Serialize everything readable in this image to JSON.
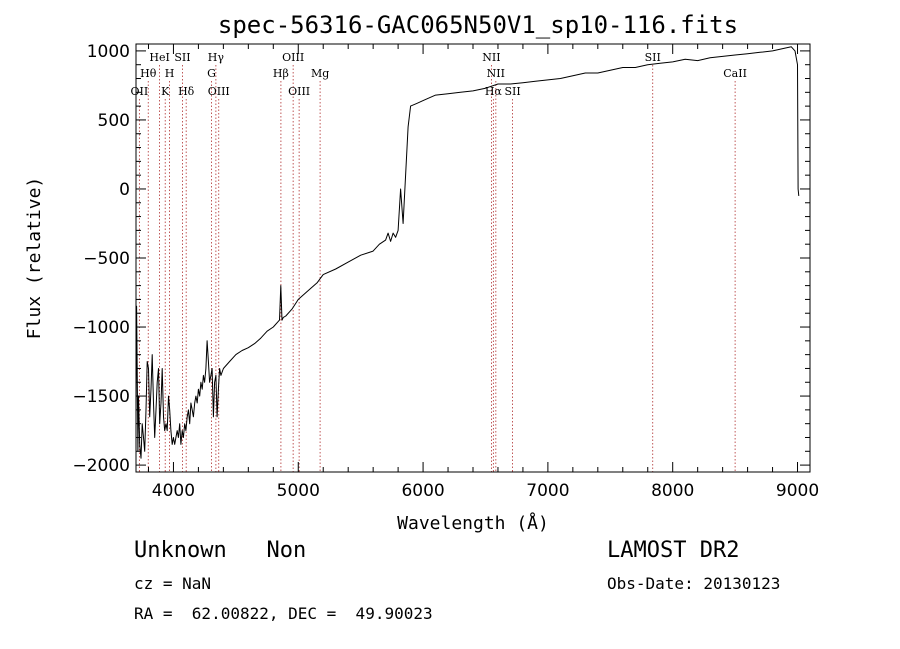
{
  "chart_data": {
    "type": "line",
    "title": "spec-56316-GAC065N50V1_sp10-116.fits",
    "xlabel": "Wavelength (Å)",
    "ylabel": "Flux (relative)",
    "xlim": [
      3700,
      9100
    ],
    "ylim": [
      -2050,
      1050
    ],
    "x_ticks": [
      "4000",
      "5000",
      "6000",
      "7000",
      "8000",
      "9000"
    ],
    "x_tick_values": [
      4000,
      5000,
      6000,
      7000,
      8000,
      9000
    ],
    "y_ticks": [
      "1000",
      "500",
      "0",
      "−500",
      "−1000",
      "−1500",
      "−2000"
    ],
    "y_tick_values": [
      1000,
      500,
      0,
      -500,
      -1000,
      -1500,
      -2000
    ],
    "series": [
      {
        "x": [
          3700,
          3705,
          3710,
          3715,
          3720,
          3730,
          3740,
          3750,
          3760,
          3770,
          3780,
          3790,
          3800,
          3810,
          3820,
          3830,
          3840,
          3850,
          3860,
          3870,
          3880,
          3890,
          3900,
          3910,
          3920,
          3930,
          3940,
          3950,
          3960,
          3970,
          3980,
          3990,
          4000,
          4010,
          4020,
          4030,
          4040,
          4050,
          4060,
          4070,
          4080,
          4090,
          4100,
          4110,
          4120,
          4130,
          4140,
          4150,
          4160,
          4170,
          4180,
          4190,
          4200,
          4210,
          4220,
          4230,
          4240,
          4250,
          4260,
          4270,
          4280,
          4290,
          4300,
          4310,
          4320,
          4330,
          4340,
          4350,
          4360,
          4370,
          4380,
          4400,
          4450,
          4500,
          4550,
          4600,
          4650,
          4700,
          4750,
          4800,
          4850,
          4860,
          4870,
          4880,
          4900,
          4950,
          5000,
          5050,
          5100,
          5150,
          5200,
          5300,
          5400,
          5500,
          5600,
          5650,
          5700,
          5720,
          5740,
          5760,
          5780,
          5800,
          5820,
          5840,
          5860,
          5880,
          5900,
          5950,
          6000,
          6050,
          6100,
          6200,
          6300,
          6400,
          6500,
          6600,
          6700,
          6800,
          6900,
          7000,
          7100,
          7200,
          7300,
          7400,
          7500,
          7600,
          7700,
          7800,
          7900,
          8000,
          8100,
          8200,
          8300,
          8400,
          8500,
          8600,
          8700,
          8800,
          8850,
          8900,
          8950,
          8980,
          9000,
          9005,
          9010
        ],
        "y": [
          -1700,
          -850,
          -1300,
          -1900,
          -1500,
          -1850,
          -1950,
          -1700,
          -1800,
          -1900,
          -1600,
          -1250,
          -1300,
          -1650,
          -1450,
          -1200,
          -1550,
          -1800,
          -1600,
          -1400,
          -1300,
          -1700,
          -1550,
          -1300,
          -1650,
          -1750,
          -1700,
          -1750,
          -1500,
          -1600,
          -1750,
          -1850,
          -1800,
          -1850,
          -1800,
          -1750,
          -1800,
          -1700,
          -1850,
          -1750,
          -1800,
          -1700,
          -1750,
          -1650,
          -1600,
          -1700,
          -1550,
          -1600,
          -1650,
          -1550,
          -1500,
          -1550,
          -1450,
          -1500,
          -1400,
          -1450,
          -1350,
          -1400,
          -1300,
          -1100,
          -1250,
          -1400,
          -1350,
          -1300,
          -1650,
          -1400,
          -1350,
          -1650,
          -1450,
          -1300,
          -1350,
          -1300,
          -1250,
          -1200,
          -1170,
          -1150,
          -1120,
          -1080,
          -1030,
          -1000,
          -950,
          -700,
          -950,
          -930,
          -920,
          -870,
          -800,
          -760,
          -720,
          -680,
          -620,
          -580,
          -530,
          -480,
          -450,
          -400,
          -370,
          -320,
          -380,
          -320,
          -350,
          -300,
          0,
          -250,
          100,
          450,
          600,
          620,
          640,
          660,
          680,
          690,
          700,
          710,
          730,
          760,
          760,
          770,
          780,
          790,
          800,
          820,
          840,
          840,
          860,
          880,
          880,
          900,
          910,
          920,
          940,
          930,
          950,
          960,
          970,
          980,
          990,
          1000,
          1010,
          1020,
          1030,
          1000,
          900,
          0,
          -50
        ]
      }
    ],
    "lines": [
      {
        "wave": 3727,
        "label": "OII",
        "row": 3
      },
      {
        "wave": 3798,
        "label": "Hθ",
        "row": 2
      },
      {
        "wave": 3889,
        "label": "HeI",
        "row": 1
      },
      {
        "wave": 3934,
        "label": "K",
        "row": 3
      },
      {
        "wave": 3969,
        "label": "H",
        "row": 2
      },
      {
        "wave": 4072,
        "label": "SII",
        "row": 1
      },
      {
        "wave": 4102,
        "label": "Hδ",
        "row": 3
      },
      {
        "wave": 4305,
        "label": "G",
        "row": 2
      },
      {
        "wave": 4340,
        "label": "Hγ",
        "row": 1
      },
      {
        "wave": 4363,
        "label": "OIII",
        "row": 3
      },
      {
        "wave": 4861,
        "label": "Hβ",
        "row": 2
      },
      {
        "wave": 4959,
        "label": "OIII",
        "row": 1
      },
      {
        "wave": 5007,
        "label": "OIII",
        "row": 3
      },
      {
        "wave": 5175,
        "label": "Mg",
        "row": 2
      },
      {
        "wave": 6548,
        "label": "NII",
        "row": 1
      },
      {
        "wave": 6563,
        "label": "Hα",
        "row": 3
      },
      {
        "wave": 6583,
        "label": "NII",
        "row": 2
      },
      {
        "wave": 6717,
        "label": "SII",
        "row": 3
      },
      {
        "wave": 7840,
        "label": "SII",
        "row": 1
      },
      {
        "wave": 8500,
        "label": "CaII",
        "row": 2
      }
    ],
    "grid": false,
    "legend": "none"
  },
  "info": {
    "class_text": "Unknown   Non",
    "survey": "LAMOST DR2",
    "cz": "cz = NaN",
    "obs_date": "Obs-Date: 20130123",
    "radec": "RA =  62.00822, DEC =  49.90023"
  }
}
